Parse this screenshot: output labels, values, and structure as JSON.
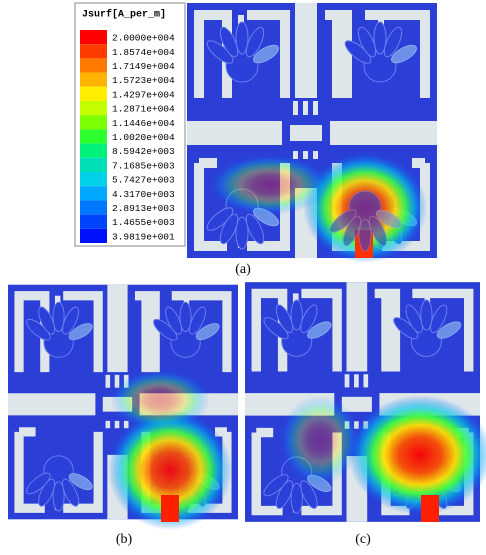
{
  "legend": {
    "title": "Jsurf[A_per_m]",
    "entries": [
      {
        "label": "2.0000e+004",
        "color": "#ff0000"
      },
      {
        "label": "1.8574e+004",
        "color": "#ff3c00"
      },
      {
        "label": "1.7149e+004",
        "color": "#ff7800"
      },
      {
        "label": "1.5723e+004",
        "color": "#ffb400"
      },
      {
        "label": "1.4297e+004",
        "color": "#ffee00"
      },
      {
        "label": "1.2871e+004",
        "color": "#c4ff00"
      },
      {
        "label": "1.1446e+004",
        "color": "#7cff00"
      },
      {
        "label": "1.0020e+004",
        "color": "#2eff2e"
      },
      {
        "label": "8.5942e+003",
        "color": "#00f07a"
      },
      {
        "label": "7.1685e+003",
        "color": "#00e0b8"
      },
      {
        "label": "5.7427e+003",
        "color": "#00d0e8"
      },
      {
        "label": "4.3170e+003",
        "color": "#00a8ff"
      },
      {
        "label": "2.8913e+003",
        "color": "#0078ff"
      },
      {
        "label": "1.4655e+003",
        "color": "#0044ff"
      },
      {
        "label": "3.9819e+001",
        "color": "#0010ff"
      }
    ]
  },
  "panels": [
    {
      "caption": "(a)"
    },
    {
      "caption": "(b)"
    },
    {
      "caption": "(c)"
    }
  ]
}
